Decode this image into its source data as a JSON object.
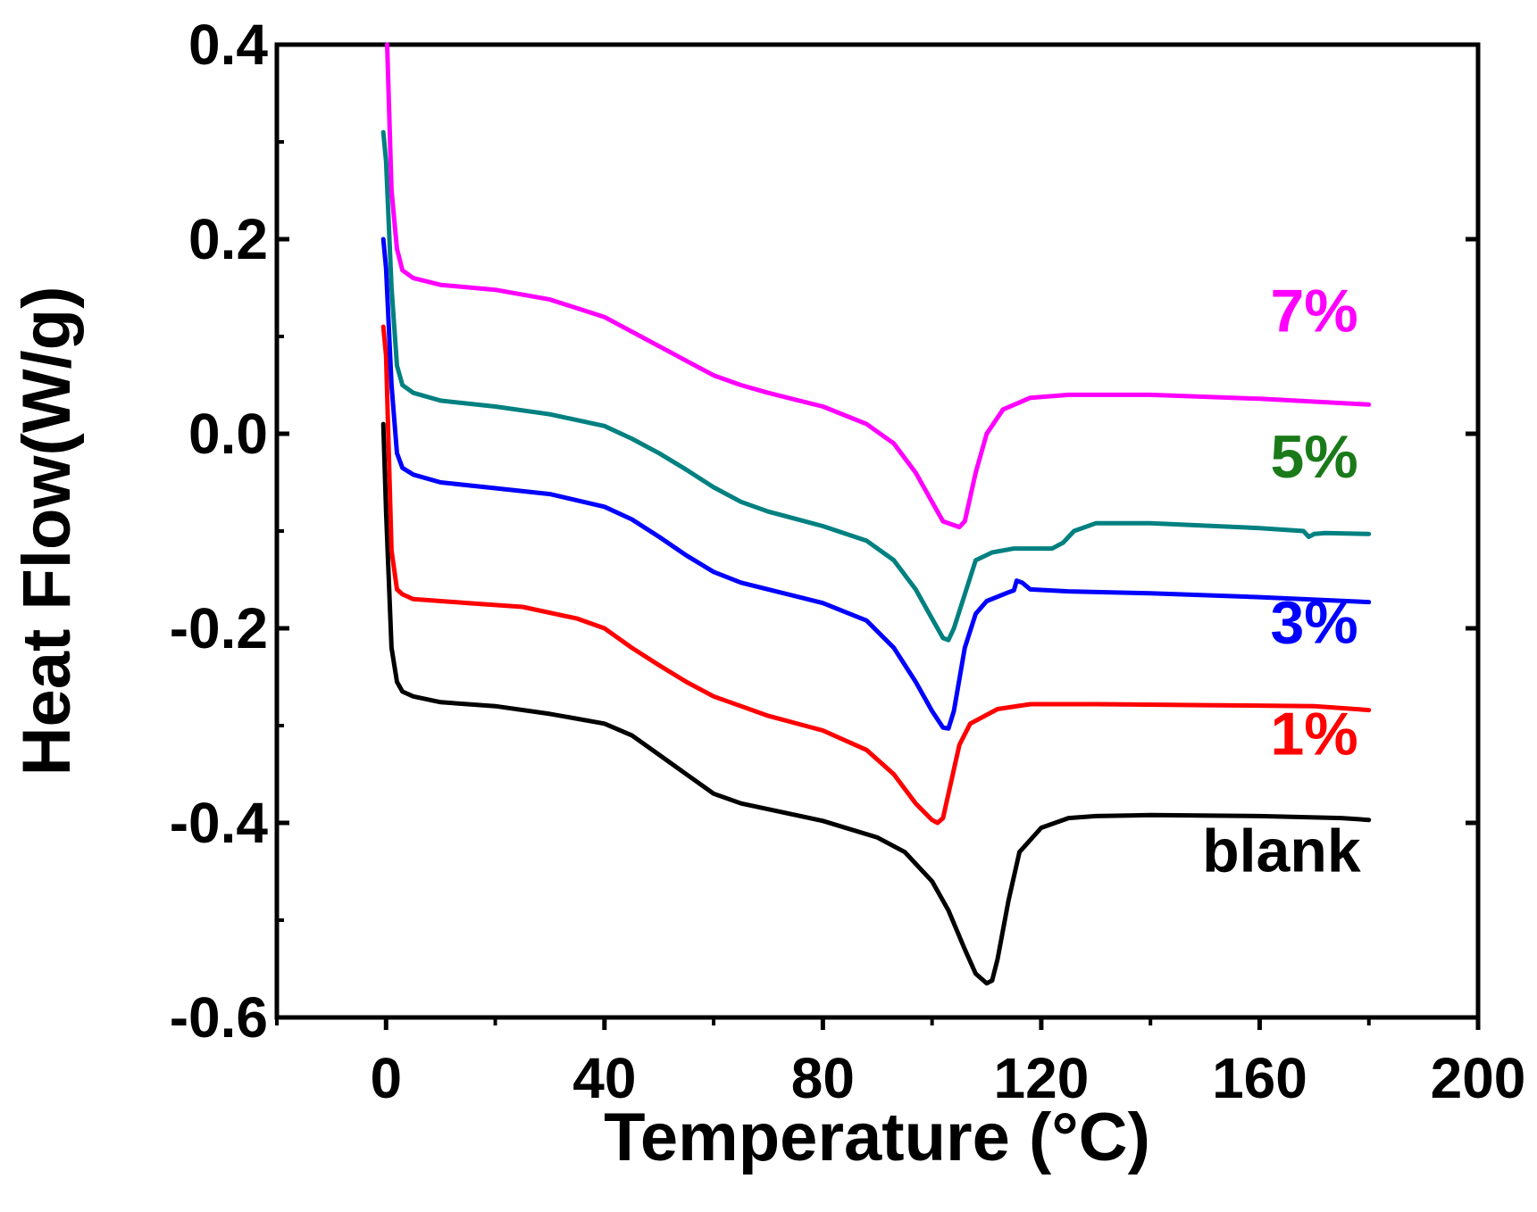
{
  "chart_data": {
    "type": "line",
    "xlabel": "Temperature (°C)",
    "ylabel": "Heat Flow(W/g)",
    "xlim": [
      -20,
      200
    ],
    "ylim": [
      -0.6,
      0.4
    ],
    "x_ticks": [
      0,
      40,
      80,
      120,
      160,
      200
    ],
    "x_tick_labels": [
      "0",
      "40",
      "80",
      "120",
      "160",
      "200"
    ],
    "y_ticks": [
      0.4,
      0.2,
      0.0,
      -0.2,
      -0.4,
      -0.6
    ],
    "y_tick_labels": [
      "0.4",
      "0.2",
      "0.0",
      "-0.2",
      "-0.4",
      "-0.6"
    ],
    "grid": false,
    "series": [
      {
        "name": "blank",
        "label": "blank",
        "color": "#000000",
        "label_at": [
          164,
          -0.45
        ],
        "points": [
          [
            -0.5,
            0.01
          ],
          [
            0,
            -0.08
          ],
          [
            1,
            -0.22
          ],
          [
            2,
            -0.255
          ],
          [
            3,
            -0.265
          ],
          [
            5,
            -0.27
          ],
          [
            10,
            -0.276
          ],
          [
            20,
            -0.28
          ],
          [
            30,
            -0.288
          ],
          [
            40,
            -0.298
          ],
          [
            45,
            -0.31
          ],
          [
            50,
            -0.33
          ],
          [
            55,
            -0.35
          ],
          [
            60,
            -0.37
          ],
          [
            65,
            -0.38
          ],
          [
            70,
            -0.386
          ],
          [
            80,
            -0.398
          ],
          [
            90,
            -0.415
          ],
          [
            95,
            -0.43
          ],
          [
            100,
            -0.46
          ],
          [
            103,
            -0.49
          ],
          [
            106,
            -0.53
          ],
          [
            108,
            -0.555
          ],
          [
            110,
            -0.565
          ],
          [
            111,
            -0.562
          ],
          [
            112,
            -0.54
          ],
          [
            114,
            -0.48
          ],
          [
            116,
            -0.43
          ],
          [
            120,
            -0.405
          ],
          [
            125,
            -0.395
          ],
          [
            130,
            -0.393
          ],
          [
            140,
            -0.392
          ],
          [
            160,
            -0.393
          ],
          [
            175,
            -0.395
          ],
          [
            180,
            -0.397
          ]
        ]
      },
      {
        "name": "1%",
        "label": "1%",
        "color": "#ff0000",
        "label_at": [
          170,
          -0.33
        ],
        "points": [
          [
            -0.5,
            0.11
          ],
          [
            0,
            0.08
          ],
          [
            1,
            -0.12
          ],
          [
            2,
            -0.16
          ],
          [
            3,
            -0.165
          ],
          [
            5,
            -0.17
          ],
          [
            15,
            -0.174
          ],
          [
            25,
            -0.178
          ],
          [
            35,
            -0.19
          ],
          [
            40,
            -0.2
          ],
          [
            45,
            -0.22
          ],
          [
            50,
            -0.238
          ],
          [
            55,
            -0.255
          ],
          [
            60,
            -0.27
          ],
          [
            65,
            -0.28
          ],
          [
            70,
            -0.29
          ],
          [
            80,
            -0.305
          ],
          [
            88,
            -0.325
          ],
          [
            93,
            -0.35
          ],
          [
            97,
            -0.38
          ],
          [
            100,
            -0.397
          ],
          [
            101,
            -0.4
          ],
          [
            102,
            -0.395
          ],
          [
            103,
            -0.37
          ],
          [
            105,
            -0.32
          ],
          [
            107,
            -0.298
          ],
          [
            112,
            -0.283
          ],
          [
            118,
            -0.278
          ],
          [
            130,
            -0.278
          ],
          [
            150,
            -0.279
          ],
          [
            170,
            -0.28
          ],
          [
            180,
            -0.284
          ]
        ]
      },
      {
        "name": "3%",
        "label": "3%",
        "color": "#0000ff",
        "label_at": [
          170,
          -0.215
        ],
        "points": [
          [
            -0.5,
            0.2
          ],
          [
            0,
            0.17
          ],
          [
            1,
            0.05
          ],
          [
            2,
            -0.02
          ],
          [
            3,
            -0.035
          ],
          [
            5,
            -0.042
          ],
          [
            10,
            -0.05
          ],
          [
            20,
            -0.056
          ],
          [
            30,
            -0.062
          ],
          [
            40,
            -0.075
          ],
          [
            45,
            -0.088
          ],
          [
            50,
            -0.106
          ],
          [
            55,
            -0.125
          ],
          [
            60,
            -0.142
          ],
          [
            65,
            -0.153
          ],
          [
            70,
            -0.16
          ],
          [
            80,
            -0.174
          ],
          [
            88,
            -0.192
          ],
          [
            93,
            -0.22
          ],
          [
            97,
            -0.255
          ],
          [
            100,
            -0.285
          ],
          [
            102,
            -0.302
          ],
          [
            103,
            -0.303
          ],
          [
            104,
            -0.285
          ],
          [
            106,
            -0.22
          ],
          [
            108,
            -0.185
          ],
          [
            110,
            -0.172
          ],
          [
            114,
            -0.163
          ],
          [
            115,
            -0.161
          ],
          [
            115.5,
            -0.151
          ],
          [
            116.5,
            -0.153
          ],
          [
            118,
            -0.16
          ],
          [
            125,
            -0.162
          ],
          [
            140,
            -0.164
          ],
          [
            160,
            -0.168
          ],
          [
            180,
            -0.173
          ]
        ]
      },
      {
        "name": "5%",
        "label": "5%",
        "color": "#008080",
        "label_format_color": "#1a7a1a",
        "label_at": [
          170,
          -0.045
        ],
        "points": [
          [
            -0.5,
            0.31
          ],
          [
            0,
            0.28
          ],
          [
            1,
            0.15
          ],
          [
            2,
            0.07
          ],
          [
            3,
            0.05
          ],
          [
            5,
            0.042
          ],
          [
            10,
            0.034
          ],
          [
            20,
            0.028
          ],
          [
            30,
            0.02
          ],
          [
            40,
            0.008
          ],
          [
            45,
            -0.005
          ],
          [
            50,
            -0.02
          ],
          [
            55,
            -0.037
          ],
          [
            60,
            -0.055
          ],
          [
            65,
            -0.07
          ],
          [
            70,
            -0.08
          ],
          [
            80,
            -0.095
          ],
          [
            88,
            -0.11
          ],
          [
            93,
            -0.13
          ],
          [
            97,
            -0.16
          ],
          [
            100,
            -0.19
          ],
          [
            102,
            -0.21
          ],
          [
            103,
            -0.212
          ],
          [
            104,
            -0.2
          ],
          [
            106,
            -0.165
          ],
          [
            108,
            -0.13
          ],
          [
            111,
            -0.122
          ],
          [
            115,
            -0.118
          ],
          [
            122,
            -0.118
          ],
          [
            124,
            -0.112
          ],
          [
            126,
            -0.1
          ],
          [
            130,
            -0.092
          ],
          [
            140,
            -0.092
          ],
          [
            160,
            -0.097
          ],
          [
            168,
            -0.1
          ],
          [
            169,
            -0.106
          ],
          [
            170,
            -0.103
          ],
          [
            172,
            -0.102
          ],
          [
            180,
            -0.103
          ]
        ]
      },
      {
        "name": "7%",
        "label": "7%",
        "color": "#ff00ff",
        "label_at": [
          170,
          0.105
        ],
        "points": [
          [
            0.2,
            0.4
          ],
          [
            1,
            0.25
          ],
          [
            2,
            0.19
          ],
          [
            3,
            0.168
          ],
          [
            5,
            0.16
          ],
          [
            10,
            0.153
          ],
          [
            20,
            0.148
          ],
          [
            30,
            0.138
          ],
          [
            40,
            0.12
          ],
          [
            45,
            0.105
          ],
          [
            50,
            0.09
          ],
          [
            55,
            0.075
          ],
          [
            60,
            0.06
          ],
          [
            65,
            0.05
          ],
          [
            70,
            0.042
          ],
          [
            80,
            0.028
          ],
          [
            88,
            0.01
          ],
          [
            93,
            -0.01
          ],
          [
            97,
            -0.04
          ],
          [
            100,
            -0.07
          ],
          [
            102,
            -0.09
          ],
          [
            105,
            -0.096
          ],
          [
            106,
            -0.09
          ],
          [
            108,
            -0.04
          ],
          [
            110,
            0.0
          ],
          [
            113,
            0.025
          ],
          [
            118,
            0.037
          ],
          [
            125,
            0.04
          ],
          [
            140,
            0.04
          ],
          [
            160,
            0.036
          ],
          [
            180,
            0.03
          ]
        ]
      }
    ]
  }
}
